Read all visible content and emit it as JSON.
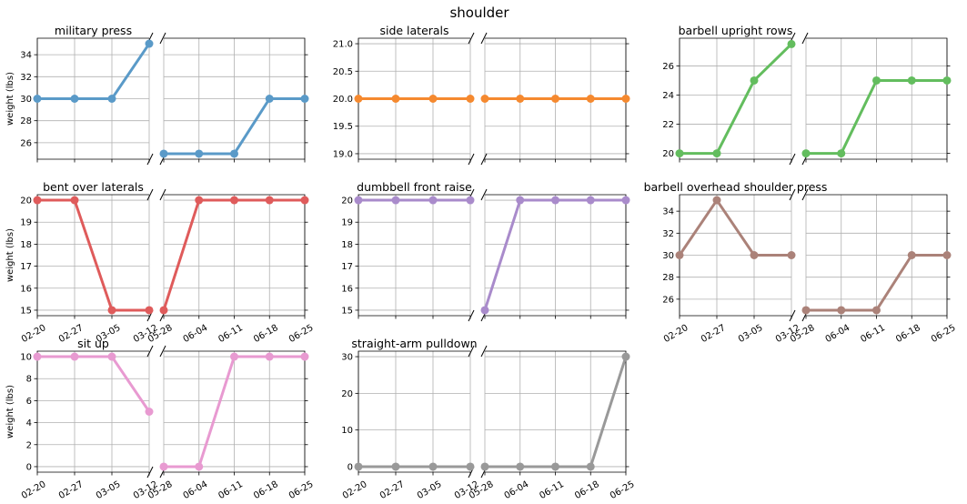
{
  "title": "shoulder",
  "colors": {
    "military press": "#5a9ac8",
    "side laterals": "#f5892f",
    "barbell upright rows": "#63bd5e",
    "bent over laterals": "#df5b5b",
    "dumbbell front raise": "#a98bcb",
    "barbell overhead shoulder press": "#ab8279",
    "sit up": "#e89ad1",
    "straight-arm pulldown": "#999999"
  },
  "x_left_labels": [
    "02-20",
    "02-27",
    "03-05",
    "03-12"
  ],
  "x_right_labels": [
    "05-28",
    "06-04",
    "06-11",
    "06-18",
    "06-25"
  ],
  "chart_data": [
    {
      "type": "line",
      "title": "military press",
      "ylabel": "weight (lbs)",
      "x_left": [
        "02-20",
        "02-27",
        "03-05",
        "03-12"
      ],
      "y_left": [
        30,
        30,
        30,
        35
      ],
      "x_right": [
        "05-28",
        "06-04",
        "06-11",
        "06-18",
        "06-25"
      ],
      "y_right": [
        25,
        25,
        25,
        30,
        30
      ],
      "ylim": [
        24.5,
        35.5
      ],
      "yticks": [
        26,
        28,
        30,
        32,
        34
      ]
    },
    {
      "type": "line",
      "title": "side laterals",
      "ylabel": "",
      "x_left": [
        "02-20",
        "02-27",
        "03-05",
        "03-12"
      ],
      "y_left": [
        20,
        20,
        20,
        20
      ],
      "x_right": [
        "05-28",
        "06-04",
        "06-11",
        "06-18",
        "06-25"
      ],
      "y_right": [
        20,
        20,
        20,
        20,
        20
      ],
      "ylim": [
        18.9,
        21.1
      ],
      "yticks": [
        "19.0",
        "19.5",
        "20.0",
        "20.5",
        "21.0"
      ]
    },
    {
      "type": "line",
      "title": "barbell upright rows",
      "ylabel": "",
      "x_left": [
        "02-20",
        "02-27",
        "03-05",
        "03-12"
      ],
      "y_left": [
        20,
        20,
        25,
        27.5
      ],
      "x_right": [
        "05-28",
        "06-04",
        "06-11",
        "06-18",
        "06-25"
      ],
      "y_right": [
        20,
        20,
        25,
        25,
        25
      ],
      "ylim": [
        19.6,
        27.9
      ],
      "yticks": [
        20,
        22,
        24,
        26
      ]
    },
    {
      "type": "line",
      "title": "bent over laterals",
      "ylabel": "weight (lbs)",
      "x_left": [
        "02-20",
        "02-27",
        "03-05",
        "03-12"
      ],
      "y_left": [
        20,
        20,
        15,
        15
      ],
      "x_right": [
        "05-28",
        "06-04",
        "06-11",
        "06-18",
        "06-25"
      ],
      "y_right": [
        15,
        20,
        20,
        20,
        20
      ],
      "ylim": [
        14.75,
        20.25
      ],
      "yticks": [
        15,
        16,
        17,
        18,
        19,
        20
      ]
    },
    {
      "type": "line",
      "title": "dumbbell front raise",
      "ylabel": "",
      "x_left": [
        "02-20",
        "02-27",
        "03-05",
        "03-12"
      ],
      "y_left": [
        20,
        20,
        20,
        20
      ],
      "x_right": [
        "05-28",
        "06-04",
        "06-11",
        "06-18",
        "06-25"
      ],
      "y_right": [
        15,
        20,
        20,
        20,
        20
      ],
      "ylim": [
        14.75,
        20.25
      ],
      "yticks": [
        15,
        16,
        17,
        18,
        19,
        20
      ]
    },
    {
      "type": "line",
      "title": "barbell overhead shoulder press",
      "ylabel": "",
      "x_left": [
        "02-20",
        "02-27",
        "03-05",
        "03-12"
      ],
      "y_left": [
        30,
        35,
        30,
        30
      ],
      "x_right": [
        "05-28",
        "06-04",
        "06-11",
        "06-18",
        "06-25"
      ],
      "y_right": [
        25,
        25,
        25,
        30,
        30
      ],
      "ylim": [
        24.5,
        35.5
      ],
      "yticks": [
        26,
        28,
        30,
        32,
        34
      ]
    },
    {
      "type": "line",
      "title": "sit up",
      "ylabel": "weight (lbs)",
      "x_left": [
        "02-20",
        "02-27",
        "03-05",
        "03-12"
      ],
      "y_left": [
        10,
        10,
        10,
        5
      ],
      "x_right": [
        "05-28",
        "06-04",
        "06-11",
        "06-18",
        "06-25"
      ],
      "y_right": [
        0,
        0,
        10,
        10,
        10
      ],
      "ylim": [
        -0.5,
        10.5
      ],
      "yticks": [
        0,
        2,
        4,
        6,
        8,
        10
      ]
    },
    {
      "type": "line",
      "title": "straight-arm pulldown",
      "ylabel": "",
      "x_left": [
        "02-20",
        "02-27",
        "03-05",
        "03-12"
      ],
      "y_left": [
        0,
        0,
        0,
        0
      ],
      "x_right": [
        "05-28",
        "06-04",
        "06-11",
        "06-18",
        "06-25"
      ],
      "y_right": [
        0,
        0,
        0,
        0,
        30
      ],
      "ylim": [
        -1.5,
        31.5
      ],
      "yticks": [
        0,
        10,
        20,
        30
      ]
    }
  ]
}
